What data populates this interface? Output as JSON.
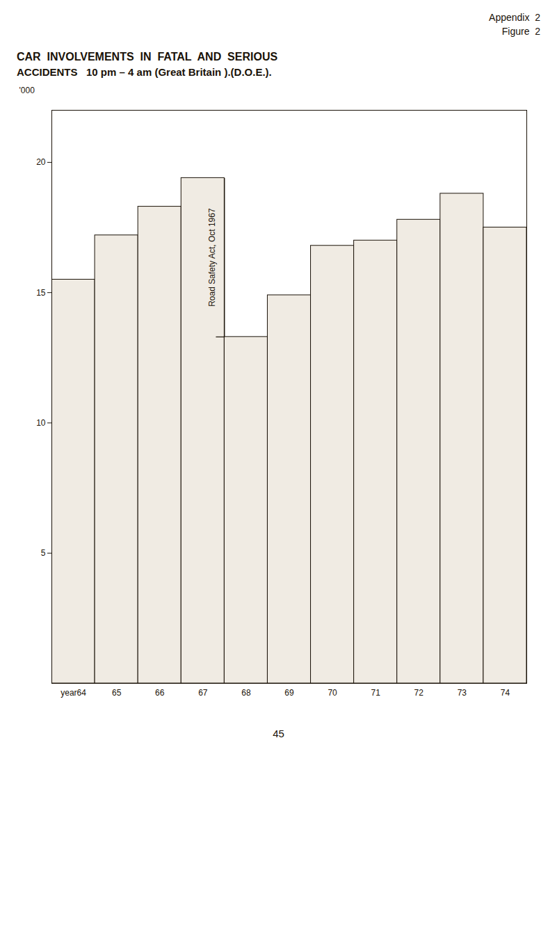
{
  "chart_data": {
    "type": "bar",
    "title": "CAR  INVOLVEMENTS  IN  FATAL  AND  SERIOUS",
    "subtitle": "ACCIDENTS   10 pm – 4 am (Great Britain ).(D.O.E.).",
    "ylabel": "'000",
    "categories": [
      "year64",
      "65",
      "66",
      "67",
      "68",
      "69",
      "70",
      "71",
      "72",
      "73",
      "74"
    ],
    "values": [
      15.5,
      17.2,
      18.3,
      19.4,
      13.3,
      14.9,
      16.8,
      17.0,
      17.8,
      18.8,
      17.5
    ],
    "color": "#f0ebe3",
    "ylim": [
      0,
      22
    ],
    "yticks": [
      5,
      10,
      15,
      20
    ],
    "grid": false,
    "annotations": [
      {
        "text": "Road Safety Act, Oct 1967",
        "x": [
          "67",
          "68"
        ]
      },
      {
        "text": "Appendix  2"
      },
      {
        "text": "Figure  2"
      }
    ],
    "caption": "45"
  }
}
